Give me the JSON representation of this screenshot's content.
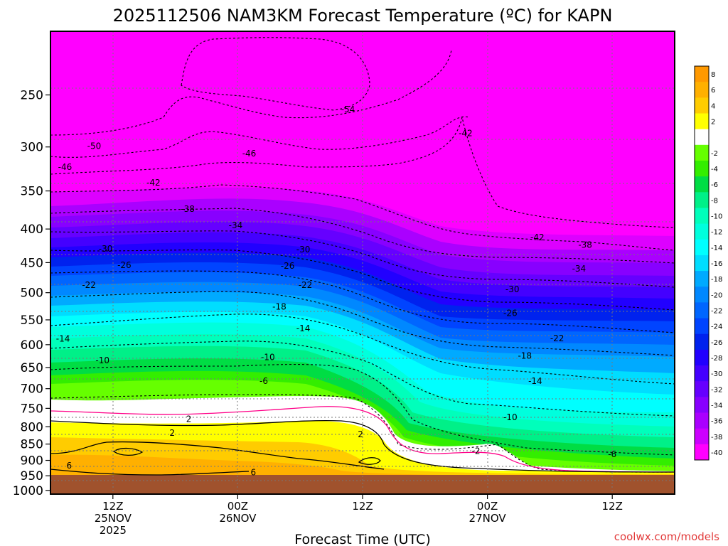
{
  "chart_data": {
    "type": "heatmap",
    "title": "2025112506 NAM3KM Forecast Temperature (ºC) for KAPN",
    "xlabel": "Forecast Time (UTC)",
    "credit": "coolwx.com/models",
    "y_ticks": [
      250,
      300,
      350,
      400,
      450,
      500,
      550,
      600,
      650,
      700,
      750,
      800,
      850,
      900,
      950,
      1000
    ],
    "x_ticks": [
      {
        "hour": 12,
        "lines": [
          "12Z",
          "25NOV",
          "2025"
        ]
      },
      {
        "hour": 24,
        "lines": [
          "00Z",
          "26NOV"
        ]
      },
      {
        "hour": 36,
        "lines": [
          "12Z"
        ]
      },
      {
        "hour": 48,
        "lines": [
          "00Z",
          "27NOV"
        ]
      },
      {
        "hour": 60,
        "lines": [
          "12Z"
        ]
      }
    ],
    "x_range_hours": [
      6,
      66
    ],
    "y_range_hpa": [
      200,
      1013
    ],
    "colorbar": [
      {
        "label": "8",
        "color": "#ff9900"
      },
      {
        "label": "6",
        "color": "#ffb000"
      },
      {
        "label": "4",
        "color": "#ffcc00"
      },
      {
        "label": "2",
        "color": "#ffff00"
      },
      {
        "label": "",
        "color": "#ffffff"
      },
      {
        "label": "-2",
        "color": "#66ff00"
      },
      {
        "label": "-4",
        "color": "#33ee00"
      },
      {
        "label": "-6",
        "color": "#00dd44"
      },
      {
        "label": "-8",
        "color": "#00f088"
      },
      {
        "label": "-10",
        "color": "#00ffbb"
      },
      {
        "label": "-12",
        "color": "#00ffdd"
      },
      {
        "label": "-14",
        "color": "#00ffff"
      },
      {
        "label": "-16",
        "color": "#00ddff"
      },
      {
        "label": "-18",
        "color": "#00aaff"
      },
      {
        "label": "-20",
        "color": "#0088ff"
      },
      {
        "label": "-22",
        "color": "#0066ff"
      },
      {
        "label": "-24",
        "color": "#0044ff"
      },
      {
        "label": "-26",
        "color": "#0022ee"
      },
      {
        "label": "-28",
        "color": "#2200ff"
      },
      {
        "label": "-30",
        "color": "#4400ff"
      },
      {
        "label": "-32",
        "color": "#6600ff"
      },
      {
        "label": "-34",
        "color": "#8800ff"
      },
      {
        "label": "-36",
        "color": "#aa00ff"
      },
      {
        "label": "-38",
        "color": "#cc00ff"
      },
      {
        "label": "-40",
        "color": "#ff00ff"
      }
    ],
    "contour_labels": [
      {
        "text": "-54",
        "hour": 34.6,
        "hpa": 263
      },
      {
        "text": "-50",
        "hour": 10.2,
        "hpa": 299
      },
      {
        "text": "-46",
        "hour": 7.4,
        "hpa": 322
      },
      {
        "text": "-46",
        "hour": 25.1,
        "hpa": 307
      },
      {
        "text": "-42",
        "hour": 15.9,
        "hpa": 340
      },
      {
        "text": "-42",
        "hour": 45.9,
        "hpa": 286
      },
      {
        "text": "-42",
        "hour": 52.8,
        "hpa": 412
      },
      {
        "text": "-38",
        "hour": 19.2,
        "hpa": 373
      },
      {
        "text": "-38",
        "hour": 57.4,
        "hpa": 423
      },
      {
        "text": "-34",
        "hour": 23.8,
        "hpa": 395
      },
      {
        "text": "-34",
        "hour": 56.8,
        "hpa": 460
      },
      {
        "text": "-30",
        "hour": 11.3,
        "hpa": 429
      },
      {
        "text": "-30",
        "hour": 30.3,
        "hpa": 430
      },
      {
        "text": "-30",
        "hour": 50.4,
        "hpa": 494
      },
      {
        "text": "-26",
        "hour": 13.1,
        "hpa": 454
      },
      {
        "text": "-26",
        "hour": 28.8,
        "hpa": 455
      },
      {
        "text": "-26",
        "hour": 50.2,
        "hpa": 537
      },
      {
        "text": "-22",
        "hour": 9.7,
        "hpa": 487
      },
      {
        "text": "-22",
        "hour": 30.5,
        "hpa": 487
      },
      {
        "text": "-22",
        "hour": 54.7,
        "hpa": 587
      },
      {
        "text": "-18",
        "hour": 28.0,
        "hpa": 525
      },
      {
        "text": "-18",
        "hour": 51.6,
        "hpa": 624
      },
      {
        "text": "-14",
        "hour": 7.2,
        "hpa": 588
      },
      {
        "text": "-14",
        "hour": 30.3,
        "hpa": 567
      },
      {
        "text": "-14",
        "hour": 52.6,
        "hpa": 682
      },
      {
        "text": "-10",
        "hour": 11.0,
        "hpa": 634
      },
      {
        "text": "-10",
        "hour": 26.9,
        "hpa": 627
      },
      {
        "text": "-10",
        "hour": 50.2,
        "hpa": 774
      },
      {
        "text": "-6",
        "hour": 26.5,
        "hpa": 682
      },
      {
        "text": "-6",
        "hour": 60.0,
        "hpa": 881
      },
      {
        "text": "-2",
        "hour": 46.9,
        "hpa": 871
      },
      {
        "text": "2",
        "hour": 19.3,
        "hpa": 779
      },
      {
        "text": "2",
        "hour": 17.7,
        "hpa": 818
      },
      {
        "text": "2",
        "hour": 35.8,
        "hpa": 822
      },
      {
        "text": "6",
        "hour": 7.8,
        "hpa": 917
      },
      {
        "text": "6",
        "hour": 25.5,
        "hpa": 939
      }
    ]
  }
}
